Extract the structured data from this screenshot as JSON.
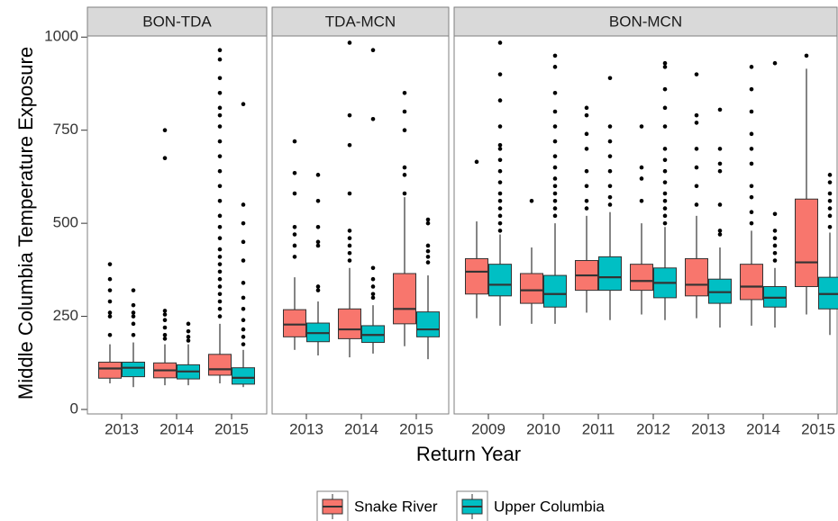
{
  "chart_data": {
    "type": "box",
    "x_label": "Return Year",
    "y_label": "Middle Columbia Temperature Exposure",
    "ylim": [
      -12,
      1003
    ],
    "yticks": [
      0,
      250,
      500,
      750,
      1000
    ],
    "series": [
      {
        "name": "Snake River",
        "color": "#f8766d"
      },
      {
        "name": "Upper Columbia",
        "color": "#00bfc4"
      }
    ],
    "panels": [
      {
        "title": "BON-TDA",
        "categories": [
          "2013",
          "2014",
          "2015"
        ],
        "stats": [
          [
            [
              70,
              84,
              110,
              127,
              175
            ],
            [
              60,
              88,
              112,
              127,
              180
            ]
          ],
          [
            [
              65,
              85,
              105,
              125,
              175
            ],
            [
              65,
              82,
              102,
              120,
              175
            ]
          ],
          [
            [
              70,
              92,
              108,
              148,
              230
            ],
            [
              60,
              68,
              85,
              112,
              160
            ]
          ]
        ],
        "outliers": [
          [
            [
              200,
              250,
              260,
              290,
              320,
              350,
              390
            ],
            [
              200,
              230,
              250,
              260,
              280,
              320
            ]
          ],
          [
            [
              190,
              200,
              220,
              240,
              255,
              265,
              675,
              750
            ],
            [
              185,
              195,
              210,
              230
            ]
          ],
          [
            [
              250,
              270,
              290,
              310,
              330,
              350,
              370,
              390,
              410,
              430,
              460,
              490,
              520,
              560,
              600,
              640,
              680,
              720,
              760,
              790,
              810,
              850,
              890,
              940,
              965
            ],
            [
              175,
              195,
              215,
              240,
              270,
              300,
              340,
              400,
              450,
              500,
              550,
              820
            ]
          ]
        ]
      },
      {
        "title": "TDA-MCN",
        "categories": [
          "2013",
          "2014",
          "2015"
        ],
        "stats": [
          [
            [
              160,
              195,
              228,
              268,
              355
            ],
            [
              145,
              182,
              205,
              232,
              290
            ]
          ],
          [
            [
              140,
              190,
              215,
              270,
              380
            ],
            [
              150,
              180,
              200,
              225,
              280
            ]
          ],
          [
            [
              170,
              230,
              270,
              365,
              570
            ],
            [
              135,
              195,
              215,
              262,
              360
            ]
          ]
        ],
        "outliers": [
          [
            [
              410,
              440,
              470,
              490,
              580,
              635,
              720
            ],
            [
              320,
              330,
              440,
              450,
              490,
              560,
              630
            ]
          ],
          [
            [
              400,
              420,
              440,
              460,
              480,
              580,
              710,
              790,
              985
            ],
            [
              300,
              310,
              330,
              350,
              380,
              780,
              965
            ]
          ],
          [
            [
              580,
              630,
              650,
              750,
              800,
              850
            ],
            [
              395,
              410,
              425,
              440,
              500,
              510
            ]
          ]
        ]
      },
      {
        "title": "BON-MCN",
        "categories": [
          "2009",
          "2010",
          "2011",
          "2012",
          "2013",
          "2014",
          "2015"
        ],
        "stats": [
          [
            [
              245,
              310,
              370,
              405,
              505
            ],
            [
              225,
              305,
              335,
              390,
              470
            ]
          ],
          [
            [
              230,
              285,
              320,
              365,
              435
            ],
            [
              230,
              275,
              310,
              360,
              500
            ]
          ],
          [
            [
              260,
              320,
              360,
              400,
              520
            ],
            [
              240,
              320,
              355,
              410,
              530
            ]
          ],
          [
            [
              255,
              320,
              345,
              390,
              500
            ],
            [
              240,
              300,
              340,
              380,
              490
            ]
          ],
          [
            [
              245,
              305,
              335,
              405,
              520
            ],
            [
              220,
              285,
              315,
              350,
              435
            ]
          ],
          [
            [
              225,
              295,
              330,
              390,
              480
            ],
            [
              220,
              275,
              300,
              330,
              380
            ]
          ],
          [
            [
              255,
              330,
              395,
              565,
              915
            ],
            [
              200,
              270,
              310,
              355,
              475
            ]
          ]
        ],
        "outliers": [
          [
            [
              665
            ],
            [
              480,
              500,
              520,
              540,
              560,
              580,
              610,
              640,
              670,
              700,
              710,
              760,
              830,
              900,
              985
            ]
          ],
          [
            [
              560
            ],
            [
              520,
              540,
              560,
              580,
              600,
              620,
              650,
              680,
              720,
              760,
              800,
              850,
              920,
              950
            ]
          ],
          [
            [
              540,
              560,
              600,
              640,
              700,
              740,
              790,
              810
            ],
            [
              550,
              570,
              600,
              640,
              680,
              720,
              760,
              890
            ]
          ],
          [
            [
              560,
              620,
              650,
              760
            ],
            [
              500,
              520,
              540,
              560,
              580,
              610,
              640,
              670,
              700,
              760,
              810,
              860,
              920,
              930
            ]
          ],
          [
            [
              550,
              600,
              650,
              700,
              770,
              790,
              900
            ],
            [
              470,
              480,
              550,
              640,
              660,
              700,
              805
            ]
          ],
          [
            [
              500,
              530,
              570,
              600,
              660,
              700,
              740,
              800,
              860,
              920
            ],
            [
              400,
              420,
              440,
              460,
              480,
              525,
              930
            ]
          ],
          [
            [
              950
            ],
            [
              490,
              520,
              540,
              560,
              580,
              610,
              630
            ]
          ]
        ]
      }
    ]
  }
}
